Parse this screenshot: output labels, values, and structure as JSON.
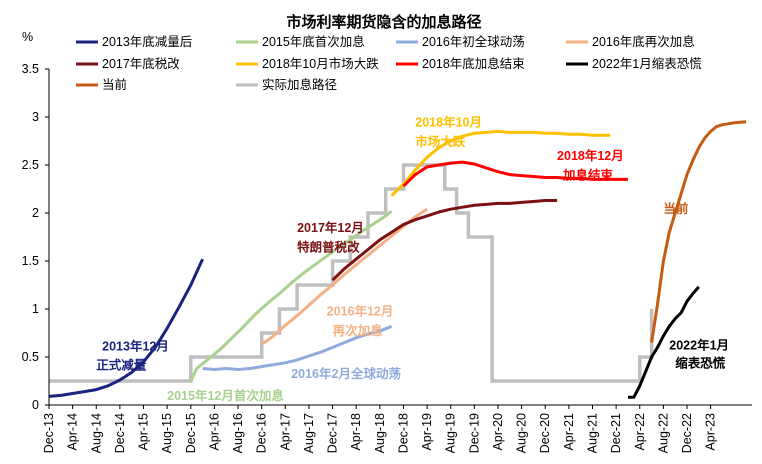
{
  "chart_data": {
    "type": "line",
    "title": "市场利率期货隐含的加息路径",
    "ylabel": "%",
    "ylim": [
      0,
      3.5
    ],
    "yticks": [
      "0",
      "0.5",
      "1",
      "1.5",
      "2",
      "2.5",
      "3",
      "3.5"
    ],
    "xticks": [
      "Dec-13",
      "Apr-14",
      "Aug-14",
      "Dec-14",
      "Apr-15",
      "Aug-15",
      "Dec-15",
      "Apr-16",
      "Aug-16",
      "Dec-16",
      "Apr-17",
      "Aug-17",
      "Dec-17",
      "Apr-18",
      "Aug-18",
      "Dec-18",
      "Apr-19",
      "Aug-19",
      "Dec-19",
      "Apr-20",
      "Aug-20",
      "Dec-20",
      "Apr-21",
      "Aug-21",
      "Dec-21",
      "Apr-22",
      "Aug-22",
      "Dec-22",
      "Apr-23"
    ],
    "grid": false,
    "legend_position": "top",
    "series": [
      {
        "name": "2013年底减量后",
        "color": "#1a237e",
        "width": 3,
        "points": [
          [
            0,
            0.09
          ],
          [
            2,
            0.1
          ],
          [
            4,
            0.12
          ],
          [
            6,
            0.14
          ],
          [
            8,
            0.16
          ],
          [
            10,
            0.2
          ],
          [
            12,
            0.26
          ],
          [
            14,
            0.34
          ],
          [
            16,
            0.45
          ],
          [
            18,
            0.6
          ],
          [
            20,
            0.8
          ],
          [
            22,
            1.02
          ],
          [
            24,
            1.25
          ],
          [
            26,
            1.52
          ]
        ]
      },
      {
        "name": "2015年底首次加息",
        "color": "#a9d18e",
        "width": 3,
        "points": [
          [
            24,
            0.25
          ],
          [
            25,
            0.38
          ],
          [
            27,
            0.48
          ],
          [
            29,
            0.58
          ],
          [
            31,
            0.7
          ],
          [
            33,
            0.82
          ],
          [
            35,
            0.95
          ],
          [
            37,
            1.06
          ],
          [
            39,
            1.16
          ],
          [
            41,
            1.27
          ],
          [
            43,
            1.37
          ],
          [
            45,
            1.46
          ],
          [
            47,
            1.55
          ],
          [
            49,
            1.64
          ],
          [
            51,
            1.72
          ],
          [
            53,
            1.81
          ],
          [
            55,
            1.89
          ],
          [
            57,
            1.97
          ],
          [
            58,
            2.02
          ]
        ]
      },
      {
        "name": "2016年初全球动荡",
        "color": "#8faadc",
        "width": 3,
        "points": [
          [
            26,
            0.38
          ],
          [
            28,
            0.37
          ],
          [
            30,
            0.38
          ],
          [
            32,
            0.37
          ],
          [
            34,
            0.38
          ],
          [
            36,
            0.4
          ],
          [
            38,
            0.42
          ],
          [
            40,
            0.44
          ],
          [
            42,
            0.47
          ],
          [
            44,
            0.51
          ],
          [
            46,
            0.55
          ],
          [
            48,
            0.6
          ],
          [
            50,
            0.65
          ],
          [
            52,
            0.7
          ],
          [
            54,
            0.74
          ],
          [
            56,
            0.77
          ],
          [
            58,
            0.82
          ]
        ]
      },
      {
        "name": "2016年底再次加息",
        "color": "#f4b183",
        "width": 3,
        "points": [
          [
            36,
            0.63
          ],
          [
            38,
            0.72
          ],
          [
            40,
            0.83
          ],
          [
            42,
            0.93
          ],
          [
            44,
            1.04
          ],
          [
            46,
            1.15
          ],
          [
            48,
            1.25
          ],
          [
            50,
            1.36
          ],
          [
            52,
            1.46
          ],
          [
            54,
            1.56
          ],
          [
            56,
            1.66
          ],
          [
            58,
            1.76
          ],
          [
            60,
            1.86
          ],
          [
            62,
            1.96
          ],
          [
            64,
            2.04
          ]
        ]
      },
      {
        "name": "2017年底税改",
        "color": "#7b1113",
        "width": 3,
        "points": [
          [
            48,
            1.3
          ],
          [
            50,
            1.42
          ],
          [
            52,
            1.52
          ],
          [
            54,
            1.62
          ],
          [
            56,
            1.72
          ],
          [
            58,
            1.8
          ],
          [
            60,
            1.88
          ],
          [
            62,
            1.93
          ],
          [
            64,
            1.97
          ],
          [
            66,
            2.01
          ],
          [
            68,
            2.04
          ],
          [
            70,
            2.06
          ],
          [
            72,
            2.08
          ],
          [
            74,
            2.09
          ],
          [
            76,
            2.1
          ],
          [
            78,
            2.1
          ],
          [
            80,
            2.11
          ],
          [
            82,
            2.12
          ],
          [
            84,
            2.13
          ],
          [
            86,
            2.13
          ]
        ]
      },
      {
        "name": "2018年10月市场大跌",
        "color": "#ffc000",
        "width": 3,
        "points": [
          [
            58,
            2.18
          ],
          [
            60,
            2.3
          ],
          [
            62,
            2.45
          ],
          [
            64,
            2.58
          ],
          [
            66,
            2.68
          ],
          [
            68,
            2.75
          ],
          [
            70,
            2.8
          ],
          [
            72,
            2.83
          ],
          [
            74,
            2.84
          ],
          [
            76,
            2.85
          ],
          [
            78,
            2.84
          ],
          [
            80,
            2.84
          ],
          [
            82,
            2.84
          ],
          [
            84,
            2.83
          ],
          [
            86,
            2.83
          ],
          [
            88,
            2.82
          ],
          [
            90,
            2.82
          ],
          [
            92,
            2.81
          ],
          [
            94,
            2.81
          ],
          [
            95,
            2.81
          ]
        ]
      },
      {
        "name": "2018年底加息结束",
        "color": "#ff0000",
        "width": 3,
        "points": [
          [
            60,
            2.28
          ],
          [
            62,
            2.4
          ],
          [
            64,
            2.48
          ],
          [
            66,
            2.5
          ],
          [
            68,
            2.52
          ],
          [
            70,
            2.53
          ],
          [
            72,
            2.51
          ],
          [
            74,
            2.47
          ],
          [
            76,
            2.43
          ],
          [
            78,
            2.4
          ],
          [
            80,
            2.39
          ],
          [
            82,
            2.38
          ],
          [
            84,
            2.37
          ],
          [
            86,
            2.37
          ],
          [
            88,
            2.36
          ],
          [
            90,
            2.36
          ],
          [
            92,
            2.35
          ],
          [
            94,
            2.35
          ],
          [
            96,
            2.35
          ],
          [
            98,
            2.35
          ]
        ]
      },
      {
        "name": "2022年1月缩表恐慌",
        "color": "#000000",
        "width": 3,
        "points": [
          [
            98,
            0.08
          ],
          [
            99,
            0.08
          ],
          [
            100,
            0.2
          ],
          [
            101,
            0.35
          ],
          [
            102,
            0.5
          ],
          [
            103,
            0.6
          ],
          [
            104,
            0.72
          ],
          [
            105,
            0.82
          ],
          [
            106,
            0.9
          ],
          [
            107,
            0.96
          ],
          [
            108,
            1.08
          ],
          [
            109,
            1.16
          ],
          [
            110,
            1.23
          ]
        ]
      },
      {
        "name": "当前",
        "color": "#c55a11",
        "width": 3,
        "points": [
          [
            102,
            0.65
          ],
          [
            103,
            1.05
          ],
          [
            104,
            1.5
          ],
          [
            105,
            1.8
          ],
          [
            106,
            2.0
          ],
          [
            107,
            2.2
          ],
          [
            108,
            2.4
          ],
          [
            109,
            2.55
          ],
          [
            110,
            2.68
          ],
          [
            111,
            2.78
          ],
          [
            112,
            2.85
          ],
          [
            113,
            2.9
          ],
          [
            114,
            2.92
          ],
          [
            116,
            2.94
          ],
          [
            118,
            2.95
          ]
        ]
      },
      {
        "name": "实际加息路径",
        "color": "#bfbfbf",
        "width": 3.5,
        "step": true,
        "points": [
          [
            0,
            0.25
          ],
          [
            24,
            0.25
          ],
          [
            24,
            0.5
          ],
          [
            36,
            0.5
          ],
          [
            36,
            0.75
          ],
          [
            39,
            0.75
          ],
          [
            39,
            1.0
          ],
          [
            42,
            1.0
          ],
          [
            42,
            1.25
          ],
          [
            48,
            1.25
          ],
          [
            48,
            1.5
          ],
          [
            51,
            1.5
          ],
          [
            51,
            1.75
          ],
          [
            54,
            1.75
          ],
          [
            54,
            2.0
          ],
          [
            57,
            2.0
          ],
          [
            57,
            2.25
          ],
          [
            60,
            2.25
          ],
          [
            60,
            2.5
          ],
          [
            67,
            2.5
          ],
          [
            67,
            2.25
          ],
          [
            69,
            2.25
          ],
          [
            69,
            2.0
          ],
          [
            71,
            2.0
          ],
          [
            71,
            1.75
          ],
          [
            75,
            1.75
          ],
          [
            75,
            0.25
          ],
          [
            100,
            0.25
          ],
          [
            100,
            0.5
          ],
          [
            102,
            0.5
          ],
          [
            102,
            1.0
          ]
        ]
      }
    ],
    "annotations": [
      {
        "text": "2013年12月",
        "color": "#1a237e",
        "x": 9,
        "y": 0.57
      },
      {
        "text": "正式减量",
        "color": "#1a237e",
        "x": 8,
        "y": 0.37
      },
      {
        "text": "2015年12月首次加息",
        "color": "#a9d18e",
        "x": 20,
        "y": 0.05
      },
      {
        "text": "2016年2月全球动荡",
        "color": "#8faadc",
        "x": 41,
        "y": 0.28
      },
      {
        "text": "2016年12月",
        "color": "#f4b183",
        "x": 47,
        "y": 0.93
      },
      {
        "text": "再次加息",
        "color": "#f4b183",
        "x": 48,
        "y": 0.73
      },
      {
        "text": "2017年12月",
        "color": "#7b1113",
        "x": 42,
        "y": 1.8
      },
      {
        "text": "特朗普税改",
        "color": "#7b1113",
        "x": 42,
        "y": 1.6
      },
      {
        "text": "2018年10月",
        "color": "#ffc000",
        "x": 62,
        "y": 2.9
      },
      {
        "text": "市场大跌",
        "color": "#ffc000",
        "x": 62,
        "y": 2.7
      },
      {
        "text": "2018年12月",
        "color": "#ff0000",
        "x": 86,
        "y": 2.55
      },
      {
        "text": "加息结束",
        "color": "#ff0000",
        "x": 87,
        "y": 2.35
      },
      {
        "text": "当前",
        "color": "#c55a11",
        "x": 104,
        "y": 2.0
      },
      {
        "text": "2022年1月",
        "color": "#000000",
        "x": 105,
        "y": 0.58
      },
      {
        "text": "缩表恐慌",
        "color": "#000000",
        "x": 106,
        "y": 0.39
      }
    ]
  }
}
